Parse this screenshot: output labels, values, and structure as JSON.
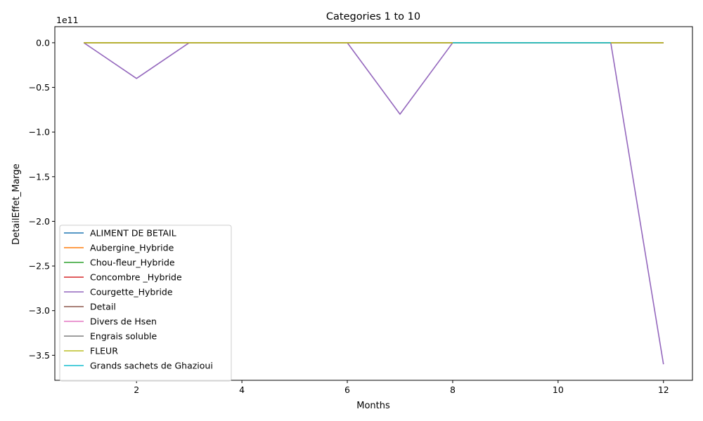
{
  "chart_data": {
    "type": "line",
    "title": "Categories 1 to 10",
    "xlabel": "Months",
    "ylabel": "DetailEffet_Marge",
    "offset_text": "1e11",
    "x": [
      1,
      2,
      3,
      4,
      5,
      6,
      7,
      8,
      9,
      10,
      11,
      12
    ],
    "xlim": [
      0.45,
      12.55
    ],
    "ylim": [
      -3.78,
      0.18
    ],
    "y_unit_scale": 100000000000.0,
    "x_ticks": [
      2,
      4,
      6,
      8,
      10,
      12
    ],
    "x_tick_labels": [
      "2",
      "4",
      "6",
      "8",
      "10",
      "12"
    ],
    "y_ticks": [
      0.0,
      -0.5,
      -1.0,
      -1.5,
      -2.0,
      -2.5,
      -3.0,
      -3.5
    ],
    "y_tick_labels": [
      "0.0",
      "−0.5",
      "−1.0",
      "−1.5",
      "−2.0",
      "−2.5",
      "−3.0",
      "−3.5"
    ],
    "legend_position": "lower-left",
    "series": [
      {
        "name": "ALIMENT DE BETAIL",
        "color": "#1f77b4",
        "x": [
          1,
          2,
          3,
          4,
          5,
          6,
          7,
          8,
          9,
          10,
          11,
          12
        ],
        "values": [
          0,
          0,
          0,
          0,
          0,
          0,
          0,
          0,
          0,
          0,
          0,
          0
        ]
      },
      {
        "name": "Aubergine_Hybride",
        "color": "#ff7f0e",
        "x": [
          1,
          2,
          3,
          4,
          5,
          6,
          7,
          8,
          9,
          10,
          11,
          12
        ],
        "values": [
          0,
          0,
          0,
          0,
          0,
          0,
          0,
          0,
          0,
          0,
          0,
          0
        ]
      },
      {
        "name": "Chou-fleur_Hybride",
        "color": "#2ca02c",
        "x": [
          1,
          2,
          3,
          4,
          5,
          6,
          7,
          8,
          9,
          10,
          11,
          12
        ],
        "values": [
          0,
          0,
          0,
          0,
          0,
          0,
          0,
          0,
          0,
          0,
          0,
          0
        ]
      },
      {
        "name": "Concombre _Hybride",
        "color": "#d62728",
        "x": [
          1,
          2,
          3,
          4,
          5,
          6,
          7,
          8,
          9,
          10,
          11,
          12
        ],
        "values": [
          0,
          0,
          0,
          0,
          0,
          0,
          0,
          0,
          0,
          0,
          0,
          0
        ]
      },
      {
        "name": "Courgette_Hybride",
        "color": "#9467bd",
        "x": [
          1,
          2,
          3,
          4,
          5,
          6,
          7,
          8,
          9,
          10,
          11,
          12
        ],
        "values": [
          0,
          -0.4,
          0,
          0,
          0,
          0,
          -0.8,
          0,
          0,
          0,
          0,
          -3.6
        ]
      },
      {
        "name": "Detail",
        "color": "#8c564b",
        "x": [
          1,
          2,
          3,
          4,
          5,
          6,
          7,
          8,
          9,
          10,
          11,
          12
        ],
        "values": [
          0,
          0,
          0,
          0,
          0,
          0,
          0,
          0,
          0,
          0,
          0,
          0
        ]
      },
      {
        "name": "Divers de Hsen",
        "color": "#e377c2",
        "x": [
          1,
          2,
          3,
          4,
          5,
          6,
          7,
          8,
          9,
          10,
          11,
          12
        ],
        "values": [
          0,
          0,
          0,
          0,
          0,
          0,
          0,
          0,
          0,
          0,
          0,
          0
        ]
      },
      {
        "name": "Engrais soluble",
        "color": "#7f7f7f",
        "x": [
          1,
          2,
          3,
          4,
          5,
          6,
          7,
          8,
          9,
          10,
          11,
          12
        ],
        "values": [
          0,
          0,
          0,
          0,
          0,
          0,
          0,
          0,
          0,
          0,
          0,
          0
        ]
      },
      {
        "name": "FLEUR",
        "color": "#bcbd22",
        "x": [
          1,
          2,
          3,
          4,
          5,
          6,
          7,
          8,
          9,
          10,
          11,
          12
        ],
        "values": [
          0,
          0,
          0,
          0,
          0,
          0,
          0,
          0,
          0,
          0,
          0,
          0
        ]
      },
      {
        "name": "Grands sachets de Ghazioui",
        "color": "#17becf",
        "x": [
          8,
          9,
          10,
          11
        ],
        "values": [
          0,
          0,
          0,
          0
        ]
      }
    ]
  }
}
